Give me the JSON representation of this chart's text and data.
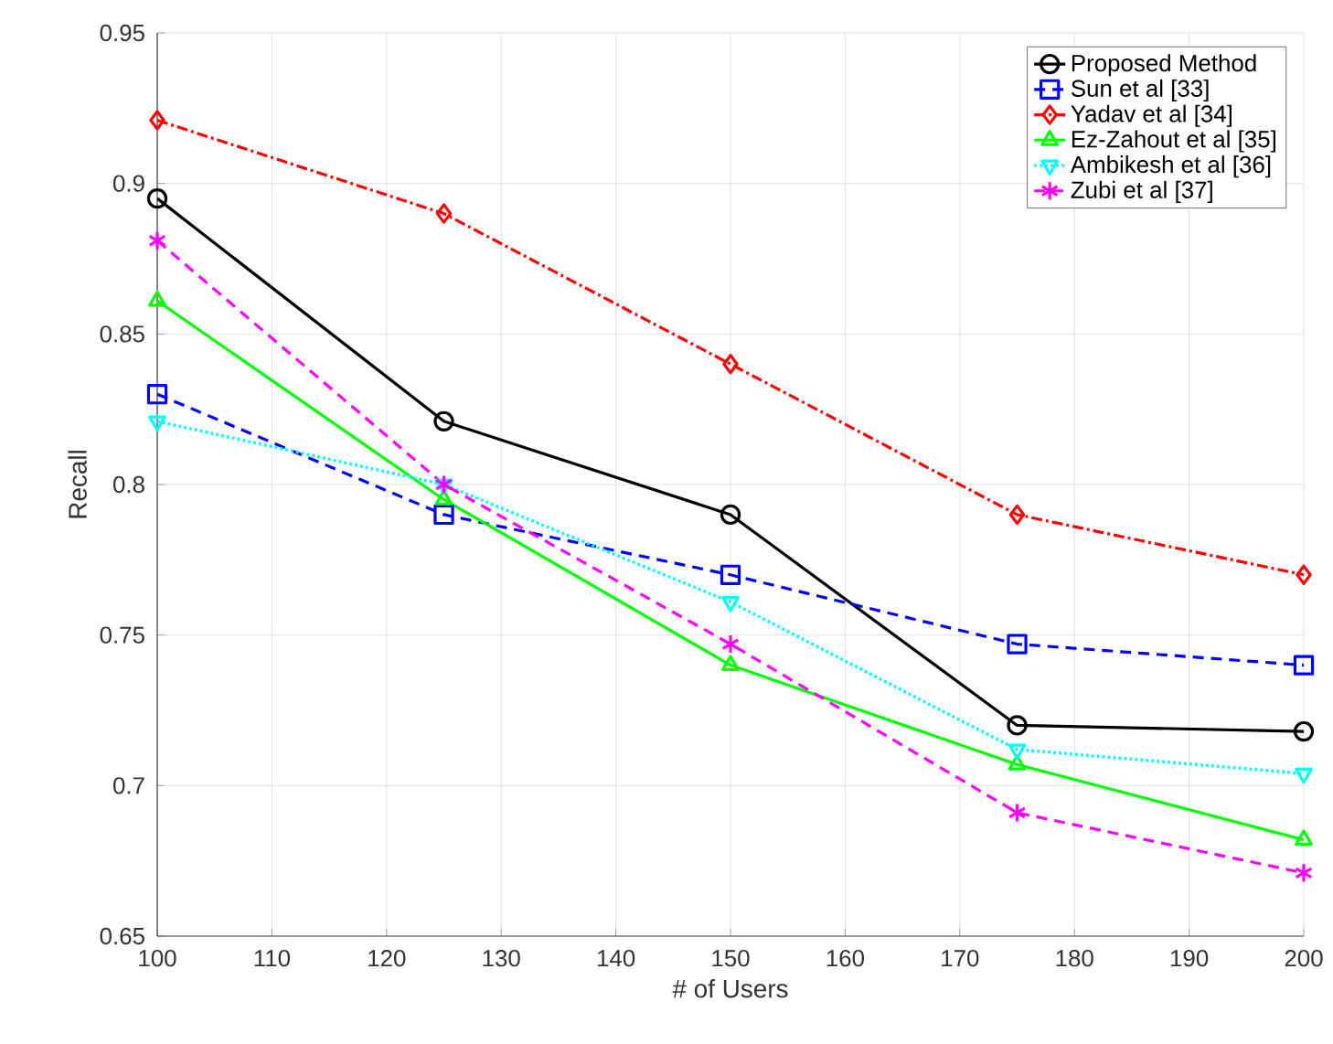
{
  "chart_data": {
    "type": "line",
    "xlabel": "# of Users",
    "ylabel": "Recall",
    "x": [
      100,
      125,
      150,
      175,
      200
    ],
    "xlim": [
      100,
      200
    ],
    "xticks": [
      100,
      110,
      120,
      130,
      140,
      150,
      160,
      170,
      180,
      190,
      200
    ],
    "ylim": [
      0.65,
      0.95
    ],
    "yticks": [
      0.65,
      0.7,
      0.75,
      0.8,
      0.85,
      0.9,
      0.95
    ],
    "grid": true,
    "legend": "top right",
    "series": [
      {
        "name": "Proposed Method",
        "color": "#000000",
        "marker": "circle",
        "line_style": "solid",
        "values": [
          0.895,
          0.821,
          0.79,
          0.72,
          0.718
        ]
      },
      {
        "name": "Sun et al [33]",
        "color": "#0000ff",
        "marker": "square",
        "line_style": "dashed",
        "values": [
          0.83,
          0.79,
          0.77,
          0.747,
          0.74
        ]
      },
      {
        "name": "Yadav et al [34]",
        "color": "#ff0000",
        "marker": "diamond",
        "line_style": "dashdot",
        "values": [
          0.921,
          0.89,
          0.84,
          0.79,
          0.77
        ]
      },
      {
        "name": "Ez-Zahout et al [35]",
        "color": "#00ff00",
        "marker": "triangle",
        "line_style": "solid",
        "values": [
          0.861,
          0.795,
          0.74,
          0.707,
          0.682
        ]
      },
      {
        "name": "Ambikesh et al [36]",
        "color": "#00ffff",
        "marker": "triangle down",
        "line_style": "dotted",
        "values": [
          0.821,
          0.8,
          0.761,
          0.712,
          0.704
        ]
      },
      {
        "name": "Zubi et al [37]",
        "color": "#ff00ff",
        "marker": "cross",
        "line_style": "dashed",
        "values": [
          0.881,
          0.8,
          0.747,
          0.691,
          0.671
        ]
      }
    ]
  }
}
